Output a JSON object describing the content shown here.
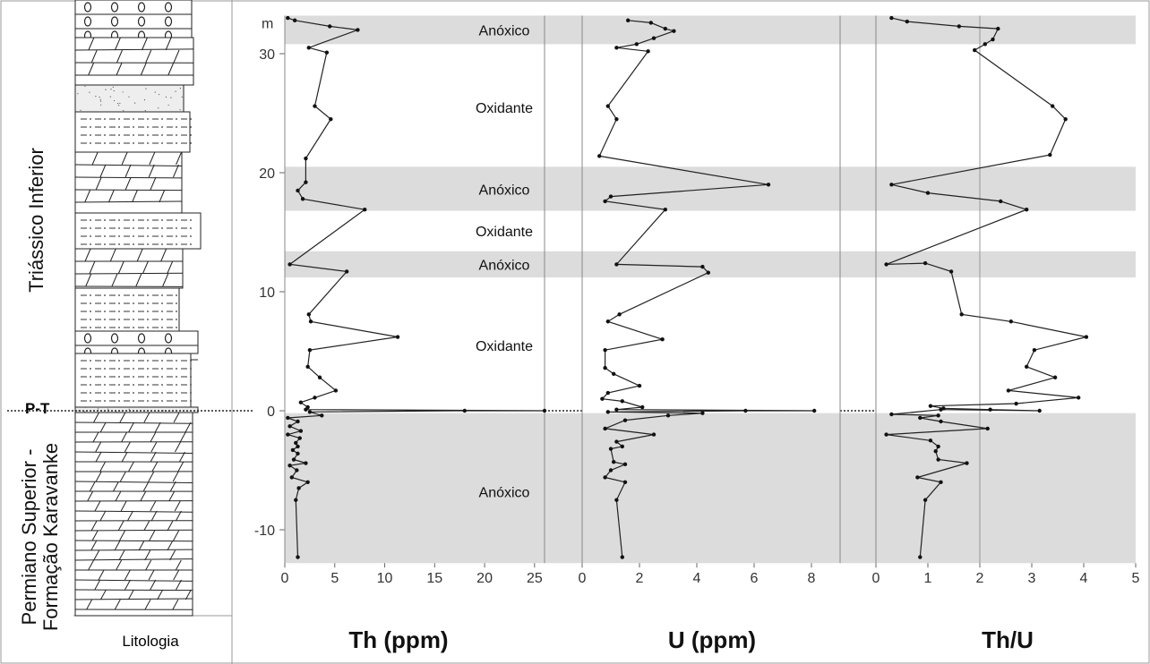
{
  "stratigraphy": {
    "upper_unit": "Triássico Inferior",
    "lower_unit_line1": "Permiano Superior -",
    "lower_unit_line2": "Formação Karavanke",
    "boundary_label": "P-T",
    "lithology_label": "Litologia"
  },
  "colors": {
    "anoxic_band": "#dcdcdc",
    "line": "#222222",
    "frame": "#888888"
  },
  "chart_data": {
    "type": "line",
    "y_unit_label": "m",
    "ylim": [
      -12.8,
      33.2
    ],
    "yticks": [
      30,
      20,
      10,
      0,
      -10
    ],
    "ytick_labels": [
      "30",
      "20",
      "10",
      "0",
      "-10"
    ],
    "grid": false,
    "zones": [
      {
        "from": 30.8,
        "to": 33.2,
        "label": "Anóxico",
        "shaded": true,
        "label_y": 32
      },
      {
        "from": 20.5,
        "to": 30.8,
        "label": "Oxidante",
        "shaded": false,
        "label_y": 25.5
      },
      {
        "from": 16.8,
        "to": 20.5,
        "label": "Anóxico",
        "shaded": true,
        "label_y": 18.6
      },
      {
        "from": 13.4,
        "to": 16.8,
        "label": "Oxidante",
        "shaded": false,
        "label_y": 15.1
      },
      {
        "from": 11.2,
        "to": 13.4,
        "label": "Anóxico",
        "shaded": true,
        "label_y": 12.3
      },
      {
        "from": -0.2,
        "to": 11.2,
        "label": "Oxidante",
        "shaded": false,
        "label_y": 5.5
      },
      {
        "from": -12.8,
        "to": -0.2,
        "label": "Anóxico",
        "shaded": true,
        "label_y": -6.8
      }
    ],
    "panels": [
      {
        "name": "Th (ppm)",
        "xlim": [
          0,
          26
        ],
        "xticks": [
          0,
          5,
          10,
          15,
          20,
          25
        ],
        "xtick_labels": [
          "0",
          "5",
          "10",
          "15",
          "20",
          "25"
        ],
        "reference_x": null,
        "points": [
          [
            0.3,
            33
          ],
          [
            1.0,
            32.8
          ],
          [
            4.5,
            32.3
          ],
          [
            7.3,
            32
          ],
          [
            2.4,
            30.5
          ],
          [
            4.2,
            30.1
          ],
          [
            3.0,
            25.6
          ],
          [
            4.6,
            24.5
          ],
          [
            2.1,
            21.2
          ],
          [
            2.1,
            19.2
          ],
          [
            1.3,
            18.5
          ],
          [
            1.8,
            17.8
          ],
          [
            8.0,
            16.9
          ],
          [
            0.5,
            12.3
          ],
          [
            6.2,
            11.7
          ],
          [
            2.4,
            8.1
          ],
          [
            2.6,
            7.5
          ],
          [
            11.3,
            6.2
          ],
          [
            2.5,
            5.1
          ],
          [
            2.3,
            3.7
          ],
          [
            3.5,
            2.8
          ],
          [
            5.1,
            1.7
          ],
          [
            3.0,
            1.1
          ],
          [
            1.6,
            0.7
          ],
          [
            2.3,
            0.3
          ],
          [
            2.1,
            0.1
          ],
          [
            26.0,
            0.0
          ],
          [
            18.0,
            0.0
          ],
          [
            2.5,
            -0.1
          ],
          [
            3.7,
            -0.4
          ],
          [
            0.3,
            -0.6
          ],
          [
            1.3,
            -0.9
          ],
          [
            0.5,
            -1.3
          ],
          [
            1.6,
            -1.7
          ],
          [
            0.3,
            -2.0
          ],
          [
            1.5,
            -2.3
          ],
          [
            1.1,
            -2.7
          ],
          [
            1.3,
            -3.0
          ],
          [
            0.8,
            -3.3
          ],
          [
            1.3,
            -3.6
          ],
          [
            0.9,
            -4.1
          ],
          [
            2.1,
            -4.4
          ],
          [
            0.5,
            -4.6
          ],
          [
            1.2,
            -5.0
          ],
          [
            0.7,
            -5.6
          ],
          [
            2.3,
            -6.0
          ],
          [
            1.4,
            -6.5
          ],
          [
            1.1,
            -7.5
          ],
          [
            1.3,
            -12.3
          ]
        ]
      },
      {
        "name": "U (ppm)",
        "xlim": [
          0,
          9
        ],
        "xticks": [
          0,
          2,
          4,
          6,
          8
        ],
        "xtick_labels": [
          "0",
          "2",
          "4",
          "6",
          "8"
        ],
        "reference_x": null,
        "points": [
          [
            1.6,
            32.8
          ],
          [
            2.4,
            32.6
          ],
          [
            2.9,
            32.1
          ],
          [
            3.2,
            31.9
          ],
          [
            2.5,
            31.3
          ],
          [
            1.9,
            30.8
          ],
          [
            1.2,
            30.5
          ],
          [
            2.3,
            30.2
          ],
          [
            0.9,
            25.6
          ],
          [
            1.2,
            24.5
          ],
          [
            0.6,
            21.4
          ],
          [
            6.5,
            19.0
          ],
          [
            1.0,
            18.0
          ],
          [
            0.8,
            17.6
          ],
          [
            2.9,
            16.9
          ],
          [
            1.2,
            12.3
          ],
          [
            4.2,
            12.1
          ],
          [
            4.4,
            11.6
          ],
          [
            1.3,
            8.1
          ],
          [
            0.9,
            7.5
          ],
          [
            2.8,
            6.0
          ],
          [
            0.8,
            5.1
          ],
          [
            0.8,
            3.6
          ],
          [
            1.1,
            3.1
          ],
          [
            2.0,
            2.1
          ],
          [
            0.9,
            1.5
          ],
          [
            0.7,
            1.0
          ],
          [
            1.4,
            0.8
          ],
          [
            2.1,
            0.3
          ],
          [
            1.2,
            0.1
          ],
          [
            8.1,
            0.0
          ],
          [
            5.7,
            0.0
          ],
          [
            0.9,
            -0.1
          ],
          [
            4.2,
            -0.2
          ],
          [
            3.0,
            -0.4
          ],
          [
            1.5,
            -0.8
          ],
          [
            0.8,
            -1.5
          ],
          [
            2.5,
            -2.0
          ],
          [
            1.2,
            -2.6
          ],
          [
            1.4,
            -3.0
          ],
          [
            1.0,
            -3.2
          ],
          [
            1.1,
            -4.3
          ],
          [
            1.5,
            -4.5
          ],
          [
            1.0,
            -5.0
          ],
          [
            0.8,
            -5.6
          ],
          [
            1.5,
            -6.0
          ],
          [
            1.2,
            -7.5
          ],
          [
            1.4,
            -12.3
          ]
        ]
      },
      {
        "name": "Th/U",
        "xlim": [
          0,
          5
        ],
        "xticks": [
          0,
          1,
          2,
          3,
          4,
          5
        ],
        "xtick_labels": [
          "0",
          "1",
          "2",
          "3",
          "4",
          "5"
        ],
        "reference_x": 2,
        "points": [
          [
            0.3,
            33
          ],
          [
            0.6,
            32.7
          ],
          [
            1.6,
            32.3
          ],
          [
            2.35,
            32.1
          ],
          [
            2.25,
            31.2
          ],
          [
            2.1,
            30.8
          ],
          [
            1.9,
            30.3
          ],
          [
            3.4,
            25.6
          ],
          [
            3.65,
            24.5
          ],
          [
            3.35,
            21.5
          ],
          [
            0.3,
            19.0
          ],
          [
            1.0,
            18.3
          ],
          [
            2.4,
            17.6
          ],
          [
            2.9,
            16.9
          ],
          [
            0.2,
            12.3
          ],
          [
            0.95,
            12.4
          ],
          [
            1.45,
            11.7
          ],
          [
            1.65,
            8.1
          ],
          [
            2.6,
            7.5
          ],
          [
            4.05,
            6.2
          ],
          [
            3.05,
            5.1
          ],
          [
            2.9,
            3.7
          ],
          [
            3.45,
            2.8
          ],
          [
            2.55,
            1.7
          ],
          [
            3.9,
            1.1
          ],
          [
            2.7,
            0.6
          ],
          [
            1.05,
            0.4
          ],
          [
            1.3,
            0.2
          ],
          [
            2.2,
            0.1
          ],
          [
            3.15,
            0.0
          ],
          [
            1.25,
            0.1
          ],
          [
            0.3,
            -0.3
          ],
          [
            1.2,
            -0.4
          ],
          [
            0.85,
            -0.6
          ],
          [
            1.25,
            -0.9
          ],
          [
            2.15,
            -1.5
          ],
          [
            0.2,
            -2.0
          ],
          [
            1.05,
            -2.5
          ],
          [
            1.2,
            -3.0
          ],
          [
            1.15,
            -3.4
          ],
          [
            1.2,
            -4.1
          ],
          [
            1.75,
            -4.4
          ],
          [
            0.8,
            -5.6
          ],
          [
            1.25,
            -6.0
          ],
          [
            0.95,
            -7.5
          ],
          [
            0.85,
            -12.3
          ]
        ]
      }
    ]
  }
}
